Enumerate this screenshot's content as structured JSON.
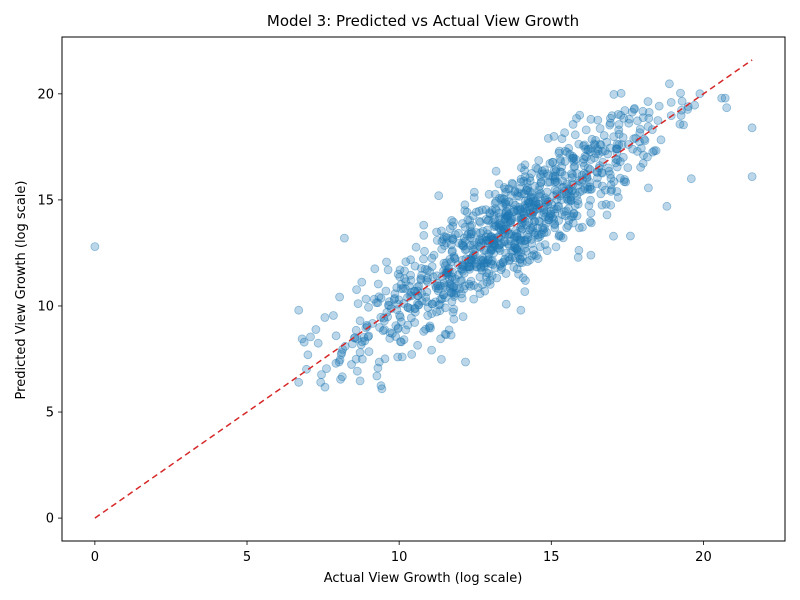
{
  "chart_data": {
    "type": "scatter",
    "title": "Model 3: Predicted vs Actual View Growth",
    "xlabel": "Actual View Growth (log scale)",
    "ylabel": "Predicted View Growth (log scale)",
    "xlim": [
      -1.08,
      22.68
    ],
    "ylim": [
      -1.08,
      22.68
    ],
    "x_ticks": [
      0,
      5,
      10,
      15,
      20
    ],
    "y_ticks": [
      0,
      5,
      10,
      15,
      20
    ],
    "grid": false,
    "legend": "none",
    "colors": {
      "points": "#1f77b4",
      "reference_line": "#d62728",
      "axes": "#000000"
    },
    "reference_line": {
      "x": [
        0,
        21.6
      ],
      "y": [
        0,
        21.6
      ],
      "style": "dashed"
    },
    "anchor_points": [
      {
        "x": 0.0,
        "y": 12.8
      },
      {
        "x": 21.6,
        "y": 18.4
      },
      {
        "x": 21.6,
        "y": 16.1
      },
      {
        "x": 6.7,
        "y": 6.4
      },
      {
        "x": 6.7,
        "y": 9.8
      },
      {
        "x": 7.0,
        "y": 7.7
      },
      {
        "x": 10.1,
        "y": 7.6
      },
      {
        "x": 14.0,
        "y": 9.8
      },
      {
        "x": 8.2,
        "y": 13.2
      },
      {
        "x": 11.3,
        "y": 15.2
      },
      {
        "x": 14.9,
        "y": 17.9
      },
      {
        "x": 16.3,
        "y": 18.8
      },
      {
        "x": 20.6,
        "y": 19.8
      },
      {
        "x": 19.5,
        "y": 19.4
      },
      {
        "x": 19.6,
        "y": 16.0
      },
      {
        "x": 18.8,
        "y": 14.7
      },
      {
        "x": 17.6,
        "y": 13.3
      },
      {
        "x": 16.3,
        "y": 12.4
      },
      {
        "x": 12.1,
        "y": 9.5
      }
    ],
    "cluster": {
      "description_free": true,
      "center_x": 13.5,
      "center_y": 13.5,
      "x_sd": 2.6,
      "residual_sd": 1.25,
      "x_range": [
        6.7,
        21.6
      ],
      "count": 1000
    }
  }
}
